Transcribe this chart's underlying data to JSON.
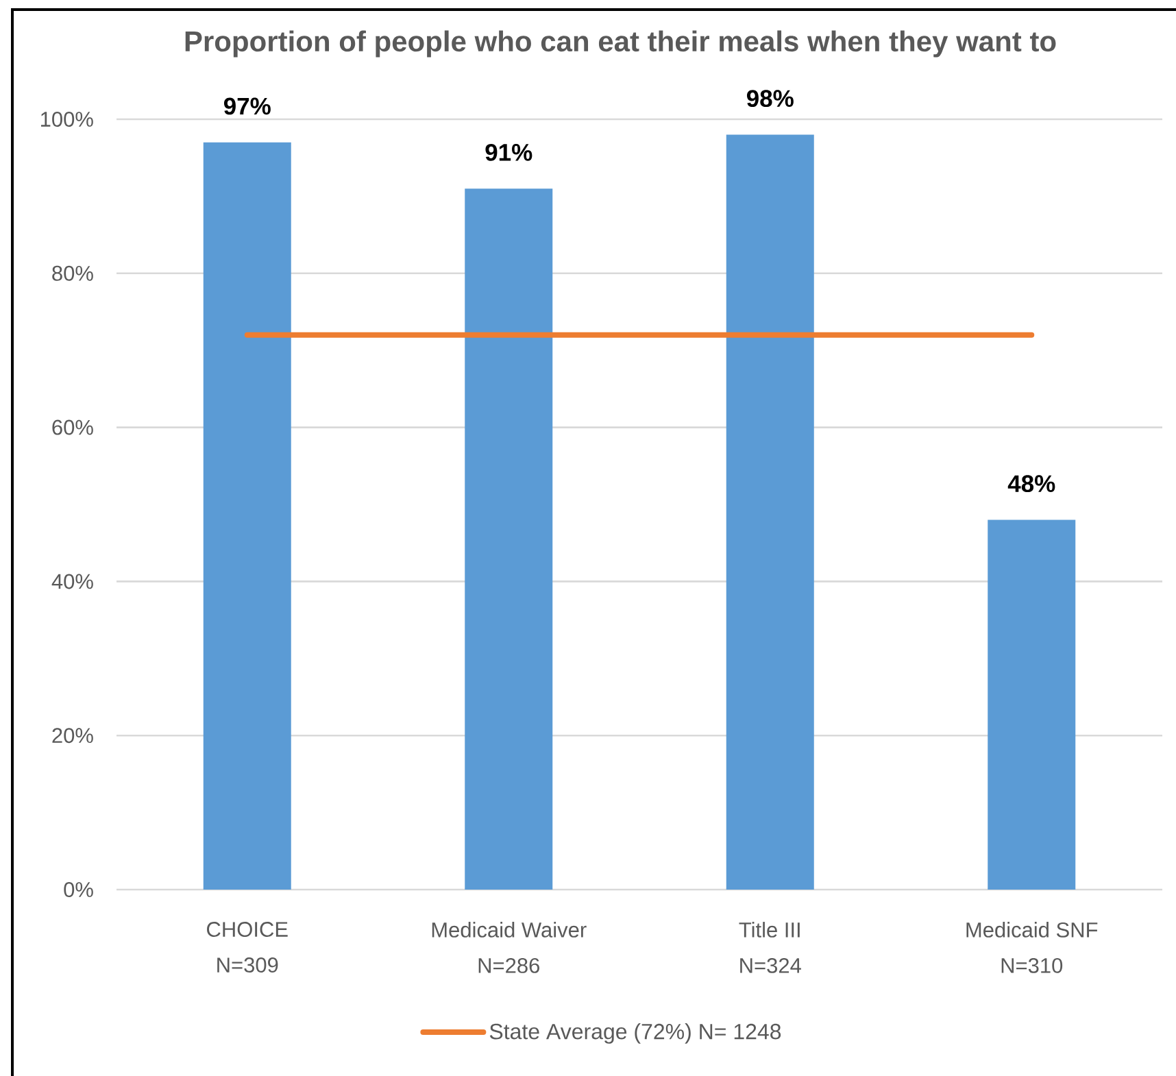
{
  "chart_data": {
    "type": "bar",
    "title": "Proportion of people who can eat their meals when they want to",
    "categories": [
      "CHOICE\nN=309",
      "Medicaid Waiver\nN=286",
      "Title III\nN=324",
      "Medicaid SNF\nN=310"
    ],
    "series": [
      {
        "color": "#5b9bd5",
        "values": [
          97,
          91,
          98,
          48
        ],
        "value_labels": [
          "97%",
          "91%",
          "98%",
          "48%"
        ]
      },
      {
        "type": "line",
        "name": "State Average (72%) N= 1248",
        "color": "#ed7d31",
        "values": [
          72,
          72,
          72,
          72
        ]
      }
    ],
    "ylim": [
      0,
      100
    ],
    "yticks": [
      {
        "value": 0,
        "label": "0%"
      },
      {
        "value": 20,
        "label": "20%"
      },
      {
        "value": 40,
        "label": "40%"
      },
      {
        "value": 60,
        "label": "60%"
      },
      {
        "value": 80,
        "label": "80%"
      },
      {
        "value": 100,
        "label": "100%"
      }
    ],
    "grid": "y",
    "legend": "bottom"
  }
}
